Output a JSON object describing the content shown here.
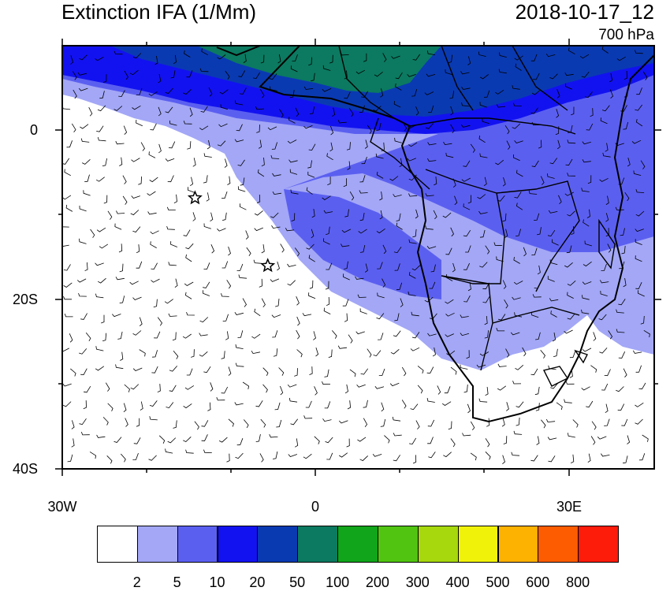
{
  "title": "Extinction IFA (1/Mm)",
  "datetime": "2018-10-17_12",
  "level": "700 hPa",
  "axes": {
    "lat_labels": [
      "0",
      "20S",
      "40S"
    ],
    "lon_labels": [
      "30W",
      "0",
      "30E"
    ]
  },
  "markers": [
    {
      "name": "star",
      "lon": -14.3,
      "lat": -8.0
    },
    {
      "name": "star",
      "lon": -5.7,
      "lat": -16.0
    }
  ],
  "colorbar": {
    "colors": [
      "#ffffff",
      "#a3a7f6",
      "#5b5ff0",
      "#1212f0",
      "#0a3ab2",
      "#0b7a60",
      "#10a51a",
      "#50c411",
      "#a7d80d",
      "#f1f20a",
      "#fdb100",
      "#fd5c00",
      "#fd1b0a"
    ],
    "labels": [
      "2",
      "5",
      "10",
      "20",
      "50",
      "100",
      "200",
      "300",
      "400",
      "500",
      "600",
      "800"
    ]
  }
}
